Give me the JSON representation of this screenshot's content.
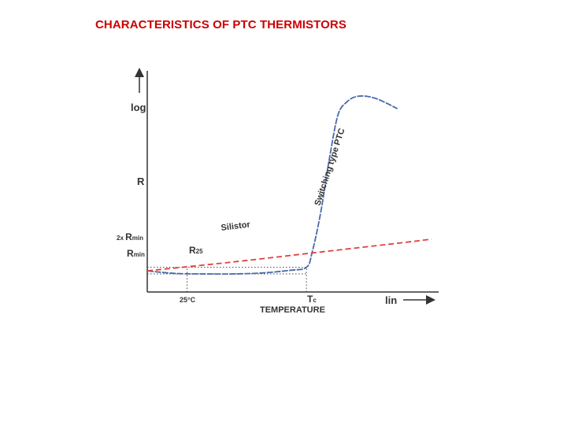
{
  "slide": {
    "title": "CHARACTERISTICS OF PTC THERMISTORS",
    "title_color": "#cc0000"
  },
  "chart_data": {
    "type": "line",
    "title": "CHARACTERISTICS OF PTC THERMISTORS",
    "xlabel": "TEMPERATURE",
    "x_scale_label": "lin",
    "ylabel_top": "log",
    "ylabel_mid": "R",
    "y_scale": "log",
    "ticks": {
      "x": [
        {
          "label": "25°C",
          "at": "25°C"
        },
        {
          "label": "T",
          "sub": "c",
          "at": "Tc"
        }
      ],
      "y": [
        {
          "label": "R",
          "sub": "min",
          "prefix": "2x ",
          "at": "2x Rmin"
        },
        {
          "label": "R",
          "sub": "min",
          "prefix": "",
          "at": "Rmin"
        }
      ]
    },
    "annotations": [
      {
        "label": "R",
        "sub": "25",
        "meaning": "R25"
      }
    ],
    "series": [
      {
        "name": "Switching type PTC",
        "color": "#4a6aa8",
        "style": "dashed",
        "note": "x in relative temperature units (0 = left axis, 100 = right end); y in relative log-resistance units (0 = x axis)",
        "points": [
          [
            0,
            24
          ],
          [
            10,
            21
          ],
          [
            20,
            20.5
          ],
          [
            30,
            20.5
          ],
          [
            40,
            21.5
          ],
          [
            50,
            24.5
          ],
          [
            56,
            28
          ],
          [
            58,
            45
          ],
          [
            61,
            90
          ],
          [
            64,
            150
          ],
          [
            67,
            200
          ],
          [
            70,
            215
          ],
          [
            74,
            222
          ],
          [
            80,
            220
          ],
          [
            88,
            208
          ]
        ]
      },
      {
        "name": "Silistor",
        "color": "#e04040",
        "style": "dashed",
        "points": [
          [
            0,
            24
          ],
          [
            30,
            34
          ],
          [
            60,
            45
          ],
          [
            90,
            56
          ],
          [
            100,
            60
          ]
        ]
      }
    ],
    "reference_lines": [
      {
        "label": "2x Rmin",
        "type": "horizontal",
        "y": 28
      },
      {
        "label": "Rmin",
        "type": "horizontal",
        "y": 20.5
      },
      {
        "label": "25°C",
        "type": "vertical",
        "x": 14
      },
      {
        "label": "Tc",
        "type": "vertical",
        "x": 56
      }
    ],
    "grid": false,
    "legend": "none"
  }
}
